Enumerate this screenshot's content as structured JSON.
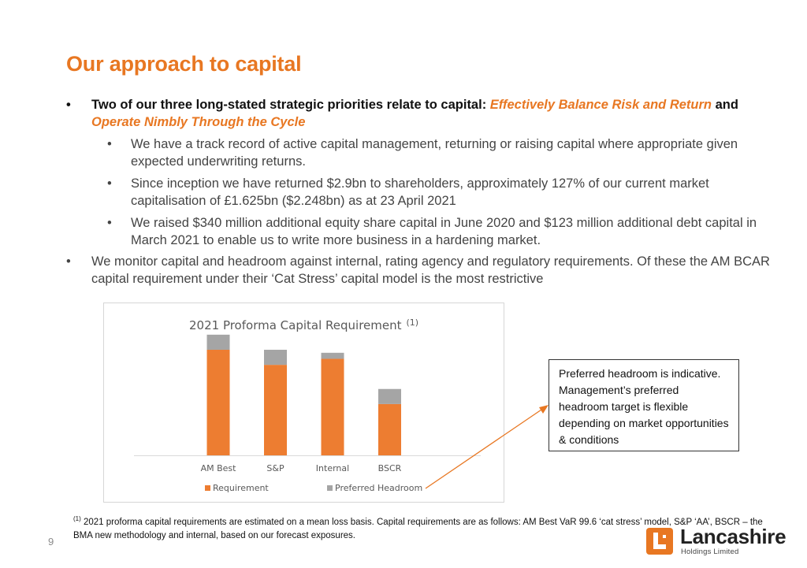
{
  "slide": {
    "title": "Our approach to capital",
    "page_number": "9"
  },
  "bullets": {
    "main": {
      "prefix": "Two of our three long-stated strategic priorities relate to capital: ",
      "emph1": "Effectively Balance Risk and Return",
      "joiner": " and ",
      "emph2": "Operate Nimbly Through the Cycle"
    },
    "sub": [
      "We have a track record of active capital management, returning or raising capital where appropriate given expected underwriting returns.",
      "Since inception we have returned $2.9bn to shareholders, approximately 127% of our current market capitalisation of £1.625bn ($2.248bn) as at 23 April 2021",
      "We raised $340 million additional equity share capital in June 2020 and $123 million additional debt capital in March 2021 to enable us to write more business in a hardening market."
    ],
    "second": "We monitor capital and headroom against internal, rating agency and regulatory requirements. Of these the AM BCAR capital requirement under their ‘Cat Stress’ capital model is the most restrictive"
  },
  "chart_data": {
    "type": "bar",
    "stacked": true,
    "title": "2021 Proforma Capital Requirement",
    "title_superscript": "(1)",
    "categories": [
      "AM Best",
      "S&P",
      "Internal",
      "BSCR"
    ],
    "series": [
      {
        "name": "Requirement",
        "values": [
          70,
          60,
          64,
          34
        ]
      },
      {
        "name": "Preferred Headroom",
        "values": [
          10,
          10,
          4,
          10
        ]
      }
    ],
    "ylim": [
      0,
      82
    ],
    "grid": false,
    "legend": "bottom",
    "colors": {
      "Requirement": "#ED7D31",
      "Preferred Headroom": "#A5A5A5"
    }
  },
  "callout": {
    "text": "Preferred headroom is indicative. Management’s preferred headroom target is flexible depending on market opportunities & conditions"
  },
  "footnote": {
    "marker": "(1)",
    "text": " 2021 proforma capital requirements are estimated on a mean loss basis. Capital requirements are as follows: AM Best VaR 99.6 ‘cat stress’ model, S&P ‘AA’, BSCR – the BMA new methodology and internal, based on our forecast exposures."
  },
  "logo": {
    "name": "Lancashire",
    "sub": "Holdings Limited"
  },
  "colors": {
    "accent": "#E87722"
  }
}
